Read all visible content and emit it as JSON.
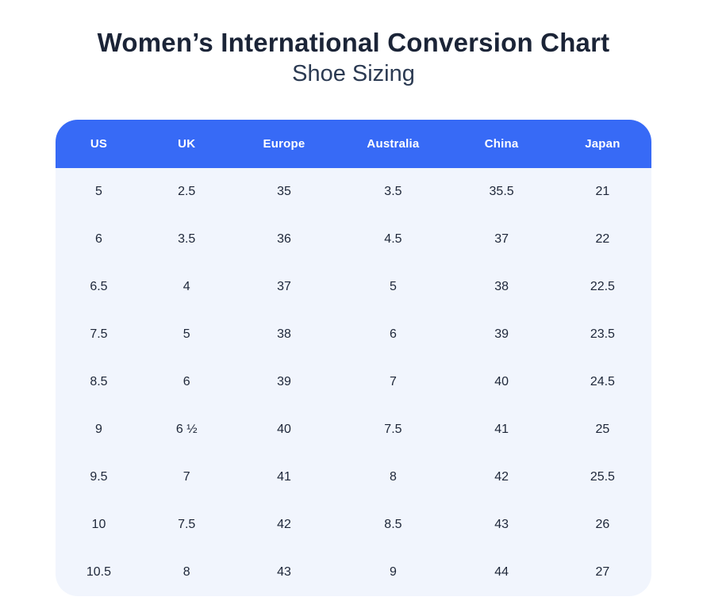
{
  "page": {
    "title": "Women’s International Conversion Chart",
    "subtitle": "Shoe Sizing"
  },
  "chart_data": {
    "type": "table",
    "title": "Women’s International Conversion Chart — Shoe Sizing",
    "columns": [
      "US",
      "UK",
      "Europe",
      "Australia",
      "China",
      "Japan"
    ],
    "rows": [
      [
        "5",
        "2.5",
        "35",
        "3.5",
        "35.5",
        "21"
      ],
      [
        "6",
        "3.5",
        "36",
        "4.5",
        "37",
        "22"
      ],
      [
        "6.5",
        "4",
        "37",
        "5",
        "38",
        "22.5"
      ],
      [
        "7.5",
        "5",
        "38",
        "6",
        "39",
        "23.5"
      ],
      [
        "8.5",
        "6",
        "39",
        "7",
        "40",
        "24.5"
      ],
      [
        "9",
        "6 ½",
        "40",
        "7.5",
        "41",
        "25"
      ],
      [
        "9.5",
        "7",
        "41",
        "8",
        "42",
        "25.5"
      ],
      [
        "10",
        "7.5",
        "42",
        "8.5",
        "43",
        "26"
      ],
      [
        "10.5",
        "8",
        "43",
        "9",
        "44",
        "27"
      ]
    ]
  },
  "colors": {
    "header_bg": "#376AF6",
    "header_text": "#FFFFFF",
    "body_bg": "#F1F5FD",
    "body_text": "#1D2638",
    "title_text": "#1B2437",
    "subtitle_text": "#2B3A52"
  }
}
